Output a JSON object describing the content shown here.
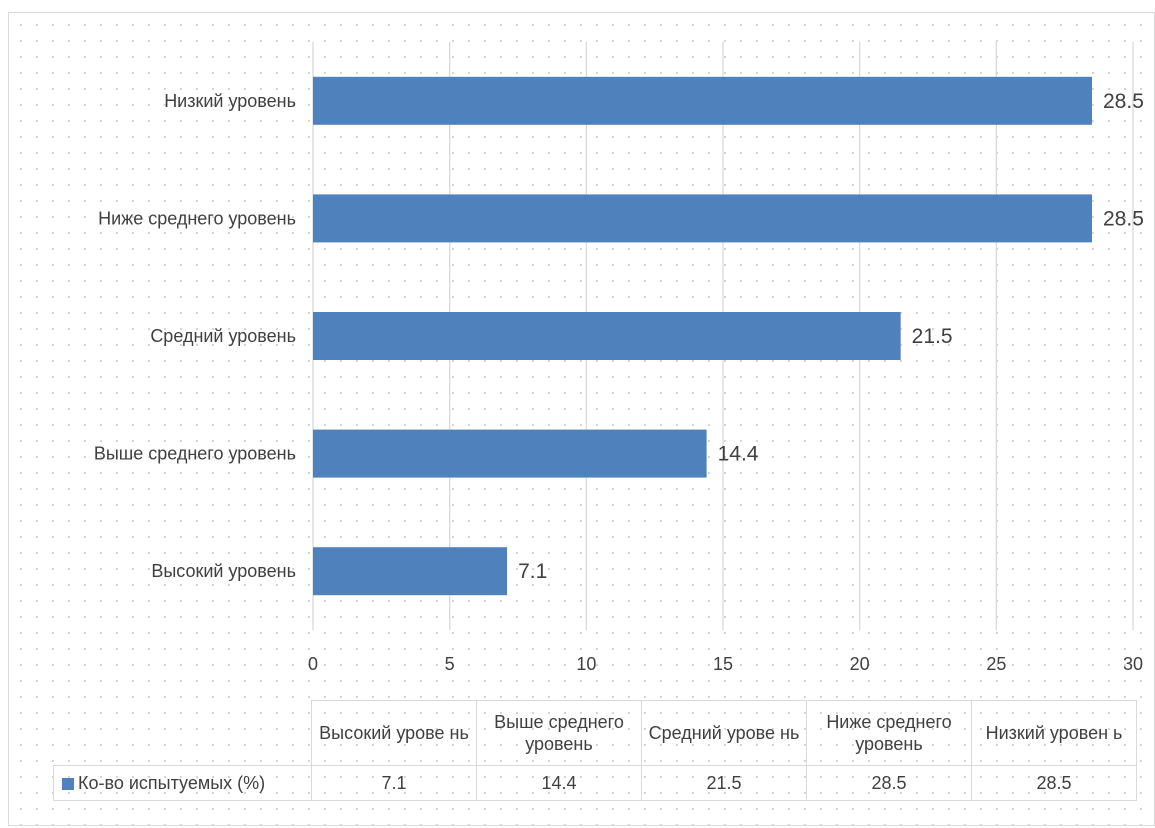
{
  "chart_data": {
    "type": "bar",
    "orientation": "horizontal",
    "categories": [
      "Высокий уровень",
      "Выше среднего уровень",
      "Средний уровень",
      "Ниже среднего уровень",
      "Низкий уровень"
    ],
    "series": [
      {
        "name": "Ко-во испытуемых (%)",
        "values": [
          7.1,
          14.4,
          21.5,
          28.5,
          28.5
        ],
        "color": "#4f81bd"
      }
    ],
    "xlim": [
      0,
      30
    ],
    "xticks": [
      0,
      5,
      10,
      15,
      20,
      25,
      30
    ],
    "grid": true,
    "data_labels": true,
    "legend": "data-table",
    "data_table": {
      "headers": [
        "Высокий урове нь",
        "Выше среднего уровень",
        "Средний урове нь",
        "Ниже среднего уровень",
        "Низкий уровен ь"
      ],
      "values": [
        "7.1",
        "14.4",
        "21.5",
        "28.5",
        "28.5"
      ]
    }
  }
}
